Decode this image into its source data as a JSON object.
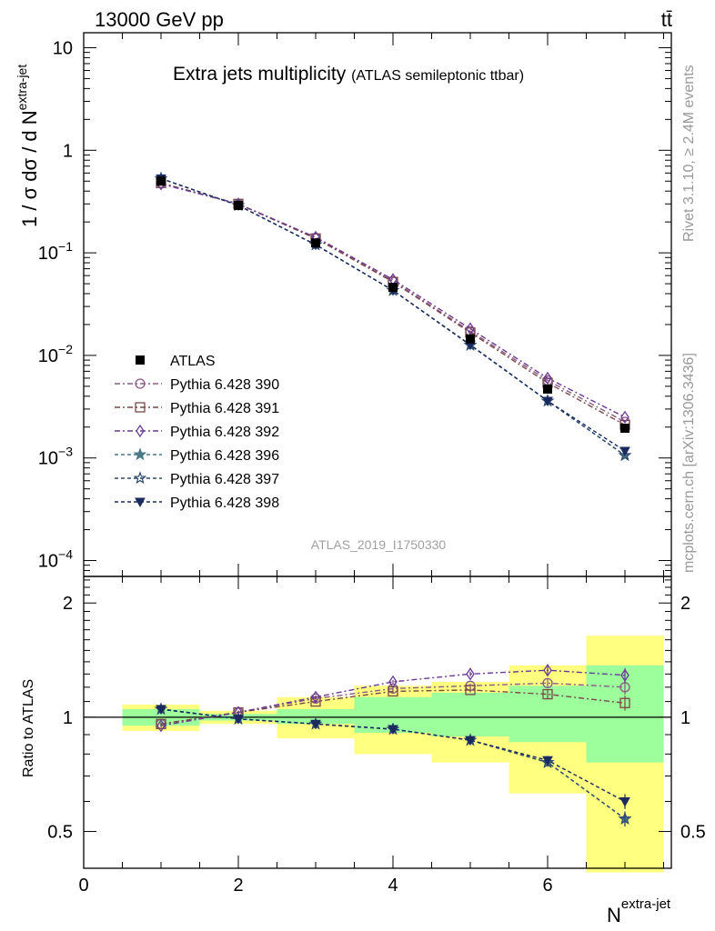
{
  "header": {
    "energy_label": "13000 GeV pp",
    "process_label": "tt̄"
  },
  "side_labels": {
    "rivet": "Rivet 3.1.10, ≥ 2.4M events",
    "mcplots": "mcplots.cern.ch [arXiv:1306.3436]"
  },
  "chart_data": [
    {
      "type": "line",
      "panel": "main",
      "title": "Extra jets multiplicity",
      "subtitle": "(ATLAS semileptonic ttbar)",
      "watermark": "ATLAS_2019_I1750330",
      "ylabel_parts": [
        "1 / σ dσ / d N",
        "extra-jet"
      ],
      "yscale": "log",
      "ylim": [
        7e-05,
        14
      ],
      "xlim": [
        0,
        7.6
      ],
      "y_ticks": [
        {
          "value": 10,
          "base": "10",
          "exp": ""
        },
        {
          "value": 1,
          "base": "1",
          "exp": ""
        },
        {
          "value": 0.1,
          "base": "10",
          "exp": "−1"
        },
        {
          "value": 0.01,
          "base": "10",
          "exp": "−2"
        },
        {
          "value": 0.001,
          "base": "10",
          "exp": "−3"
        },
        {
          "value": 0.0001,
          "base": "10",
          "exp": "−4"
        }
      ],
      "legend_position": "bottom-left",
      "x": [
        1,
        2,
        3,
        4,
        5,
        6,
        7
      ],
      "data": {
        "name": "ATLAS",
        "values": [
          0.5,
          0.29,
          0.125,
          0.046,
          0.0145,
          0.0047,
          0.00195
        ],
        "color": "#000000"
      },
      "series": [
        {
          "name": "Pythia 6.428 390",
          "values": [
            0.48,
            0.3,
            0.14,
            0.053,
            0.0172,
            0.0057,
            0.00225
          ],
          "color": "#8a5a86",
          "marker": "circle-open",
          "dash": "6,3,2,3"
        },
        {
          "name": "Pythia 6.428 391",
          "values": [
            0.48,
            0.3,
            0.138,
            0.052,
            0.0167,
            0.0054,
            0.0021
          ],
          "color": "#7a4848",
          "marker": "square-open",
          "dash": "6,3,2,3"
        },
        {
          "name": "Pythia 6.428 392",
          "values": [
            0.47,
            0.3,
            0.142,
            0.055,
            0.0182,
            0.006,
            0.0025
          ],
          "color": "#6a3a92",
          "marker": "diamond-open",
          "dash": "6,3,2,3"
        },
        {
          "name": "Pythia 6.428 396",
          "values": [
            0.53,
            0.29,
            0.12,
            0.043,
            0.0126,
            0.0036,
            0.00106
          ],
          "color": "#4a7a86",
          "marker": "star-filled",
          "dash": "4,3"
        },
        {
          "name": "Pythia 6.428 397",
          "values": [
            0.53,
            0.29,
            0.12,
            0.043,
            0.0126,
            0.0036,
            0.00106
          ],
          "color": "#2e4a70",
          "marker": "star-open",
          "dash": "4,3"
        },
        {
          "name": "Pythia 6.428 398",
          "values": [
            0.53,
            0.29,
            0.12,
            0.043,
            0.0127,
            0.0036,
            0.00117
          ],
          "color": "#1a2a5e",
          "marker": "triangle-down-filled",
          "dash": "4,3"
        }
      ]
    },
    {
      "type": "line",
      "panel": "ratio",
      "ylabel": "Ratio to ATLAS",
      "xlabel_parts": [
        "N",
        "extra-jet"
      ],
      "yscale": "log",
      "ylim": [
        0.4,
        2.35
      ],
      "xlim": [
        0,
        7.6
      ],
      "y_ticks": [
        0.5,
        1,
        2
      ],
      "x_ticks": [
        0,
        2,
        4,
        6
      ],
      "bands": {
        "bins": [
          [
            0.5,
            1.5
          ],
          [
            1.5,
            2.5
          ],
          [
            2.5,
            3.5
          ],
          [
            3.5,
            4.5
          ],
          [
            4.5,
            5.5
          ],
          [
            5.5,
            6.5
          ],
          [
            6.5,
            7.5
          ]
        ],
        "total": [
          [
            0.92,
            1.08
          ],
          [
            0.96,
            1.04
          ],
          [
            0.88,
            1.13
          ],
          [
            0.8,
            1.21
          ],
          [
            0.76,
            1.24
          ],
          [
            0.63,
            1.37
          ],
          [
            0.39,
            1.64
          ]
        ],
        "stat": [
          [
            0.95,
            1.05
          ],
          [
            0.98,
            1.02
          ],
          [
            0.96,
            1.05
          ],
          [
            0.91,
            1.13
          ],
          [
            0.89,
            1.16
          ],
          [
            0.86,
            1.21
          ],
          [
            0.76,
            1.37
          ]
        ]
      },
      "x": [
        1,
        2,
        3,
        4,
        5,
        6,
        7
      ],
      "series": [
        {
          "name": "Pythia 6.428 390",
          "values": [
            0.96,
            1.03,
            1.12,
            1.19,
            1.21,
            1.23,
            1.2
          ]
        },
        {
          "name": "Pythia 6.428 391",
          "values": [
            0.96,
            1.03,
            1.1,
            1.17,
            1.18,
            1.15,
            1.09
          ]
        },
        {
          "name": "Pythia 6.428 392",
          "values": [
            0.95,
            1.03,
            1.13,
            1.24,
            1.3,
            1.33,
            1.29
          ]
        },
        {
          "name": "Pythia 6.428 396",
          "values": [
            1.05,
            0.99,
            0.96,
            0.93,
            0.87,
            0.76,
            0.54
          ]
        },
        {
          "name": "Pythia 6.428 397",
          "values": [
            1.05,
            0.99,
            0.96,
            0.93,
            0.87,
            0.76,
            0.54
          ]
        },
        {
          "name": "Pythia 6.428 398",
          "values": [
            1.05,
            0.99,
            0.96,
            0.93,
            0.87,
            0.77,
            0.6
          ]
        }
      ],
      "errors": [
        0.01,
        0.01,
        0.01,
        0.01,
        0.015,
        0.025,
        0.045
      ]
    }
  ]
}
